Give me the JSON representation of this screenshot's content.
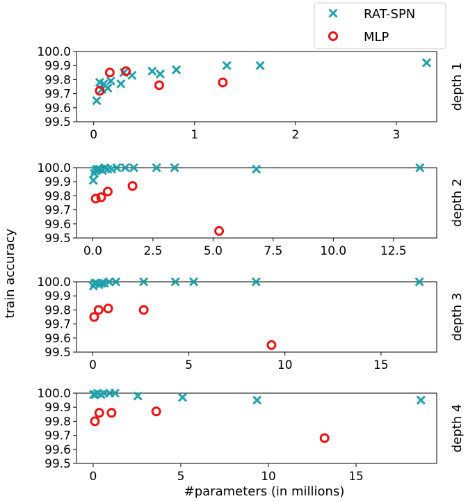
{
  "colors": {
    "rat_spn": "#1fa1ad",
    "mlp": "#ee1111",
    "axis": "#000000",
    "legend_border": "#cccccc"
  },
  "legend": [
    {
      "name": "RAT-SPN",
      "marker": "x"
    },
    {
      "name": "MLP",
      "marker": "circle"
    }
  ],
  "ylabel": "train accuracy",
  "xlabel": "#parameters (in millions)",
  "chart_data": [
    {
      "type": "scatter",
      "row_label": "depth 1",
      "xlim": [
        -0.17,
        3.4
      ],
      "ylim": [
        99.5,
        100.0
      ],
      "xticks": [
        0,
        1,
        2,
        3
      ],
      "yticks": [
        "99.5",
        "99.6",
        "99.7",
        "99.8",
        "99.9",
        "100.0"
      ],
      "series": [
        {
          "name": "RAT-SPN",
          "marker": "x",
          "points": [
            [
              0.03,
              99.65
            ],
            [
              0.06,
              99.78
            ],
            [
              0.08,
              99.73
            ],
            [
              0.1,
              99.77
            ],
            [
              0.14,
              99.74
            ],
            [
              0.17,
              99.79
            ],
            [
              0.27,
              99.77
            ],
            [
              0.3,
              99.85
            ],
            [
              0.38,
              99.83
            ],
            [
              0.58,
              99.86
            ],
            [
              0.66,
              99.84
            ],
            [
              0.82,
              99.87
            ],
            [
              1.32,
              99.9
            ],
            [
              1.65,
              99.9
            ],
            [
              3.3,
              99.92
            ]
          ]
        },
        {
          "name": "MLP",
          "marker": "circle",
          "points": [
            [
              0.06,
              99.72
            ],
            [
              0.16,
              99.85
            ],
            [
              0.32,
              99.86
            ],
            [
              0.65,
              99.76
            ],
            [
              1.28,
              99.78
            ]
          ]
        }
      ]
    },
    {
      "type": "scatter",
      "row_label": "depth 2",
      "xlim": [
        -0.68,
        14.3
      ],
      "ylim": [
        99.5,
        100.0
      ],
      "xticks": [
        "0.0",
        "2.5",
        "5.0",
        "7.5",
        "10.0",
        "12.5"
      ],
      "yticks": [
        "99.5",
        "99.6",
        "99.7",
        "99.8",
        "99.9",
        "100.0"
      ],
      "series": [
        {
          "name": "RAT-SPN",
          "marker": "x",
          "points": [
            [
              0.02,
              99.91
            ],
            [
              0.06,
              99.96
            ],
            [
              0.1,
              99.98
            ],
            [
              0.18,
              99.99
            ],
            [
              0.28,
              99.99
            ],
            [
              0.4,
              99.98
            ],
            [
              0.5,
              100.0
            ],
            [
              0.62,
              99.99
            ],
            [
              0.78,
              99.99
            ],
            [
              1.0,
              100.0
            ],
            [
              1.35,
              100.0
            ],
            [
              1.7,
              100.0
            ],
            [
              2.65,
              100.0
            ],
            [
              3.4,
              100.0
            ],
            [
              6.8,
              99.99
            ],
            [
              13.6,
              100.0
            ]
          ]
        },
        {
          "name": "MLP",
          "marker": "circle",
          "points": [
            [
              0.12,
              99.78
            ],
            [
              0.35,
              99.79
            ],
            [
              0.62,
              99.83
            ],
            [
              1.65,
              99.87
            ],
            [
              5.25,
              99.55
            ]
          ]
        }
      ]
    },
    {
      "type": "scatter",
      "row_label": "depth 3",
      "xlim": [
        -0.85,
        17.9
      ],
      "ylim": [
        99.5,
        100.0
      ],
      "xticks": [
        0,
        5,
        10,
        15
      ],
      "yticks": [
        "99.5",
        "99.6",
        "99.7",
        "99.8",
        "99.9",
        "100.0"
      ],
      "series": [
        {
          "name": "RAT-SPN",
          "marker": "x",
          "points": [
            [
              0.03,
              99.97
            ],
            [
              0.1,
              99.99
            ],
            [
              0.2,
              99.99
            ],
            [
              0.32,
              99.98
            ],
            [
              0.45,
              99.99
            ],
            [
              0.6,
              99.99
            ],
            [
              0.85,
              100.0
            ],
            [
              1.2,
              100.0
            ],
            [
              2.65,
              100.0
            ],
            [
              4.3,
              100.0
            ],
            [
              5.25,
              100.0
            ],
            [
              8.5,
              100.0
            ],
            [
              17.0,
              100.0
            ]
          ]
        },
        {
          "name": "MLP",
          "marker": "circle",
          "points": [
            [
              0.07,
              99.75
            ],
            [
              0.3,
              99.8
            ],
            [
              0.8,
              99.81
            ],
            [
              2.65,
              99.8
            ],
            [
              9.3,
              99.55
            ]
          ]
        }
      ]
    },
    {
      "type": "scatter",
      "row_label": "depth 4",
      "xlim": [
        -0.95,
        19.6
      ],
      "ylim": [
        99.5,
        100.0
      ],
      "xticks": [
        0,
        5,
        10,
        15
      ],
      "yticks": [
        "99.5",
        "99.6",
        "99.7",
        "99.8",
        "99.9",
        "100.0"
      ],
      "series": [
        {
          "name": "RAT-SPN",
          "marker": "x",
          "points": [
            [
              0.03,
              99.99
            ],
            [
              0.12,
              99.99
            ],
            [
              0.25,
              100.0
            ],
            [
              0.45,
              99.99
            ],
            [
              0.6,
              100.0
            ],
            [
              0.95,
              100.0
            ],
            [
              1.25,
              100.0
            ],
            [
              2.55,
              99.98
            ],
            [
              5.1,
              99.97
            ],
            [
              9.35,
              99.95
            ],
            [
              18.7,
              99.95
            ]
          ]
        },
        {
          "name": "MLP",
          "marker": "circle",
          "points": [
            [
              0.1,
              99.8
            ],
            [
              0.35,
              99.86
            ],
            [
              1.05,
              99.86
            ],
            [
              3.6,
              99.87
            ],
            [
              13.2,
              99.68
            ]
          ]
        }
      ]
    }
  ]
}
